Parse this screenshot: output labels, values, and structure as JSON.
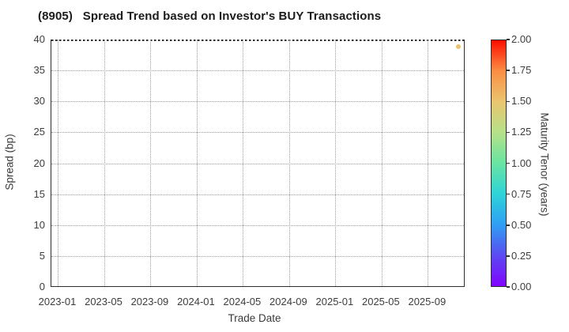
{
  "chart_data": {
    "type": "scatter",
    "title": "(8905)   Spread Trend based on Investor's BUY Transactions",
    "xlabel": "Trade Date",
    "ylabel": "Spread (bp)",
    "x_tick_labels": [
      "2023-01",
      "2023-05",
      "2023-09",
      "2024-01",
      "2024-05",
      "2024-09",
      "2025-01",
      "2025-05",
      "2025-09"
    ],
    "x_tick_months": [
      0,
      4,
      8,
      12,
      16,
      20,
      24,
      28,
      32
    ],
    "xlim_months": [
      -0.58,
      35.26
    ],
    "y_tick_labels": [
      "0",
      "5",
      "10",
      "15",
      "20",
      "25",
      "30",
      "35",
      "40"
    ],
    "ylim": [
      0,
      40
    ],
    "grid": true,
    "grid_style": "dotted",
    "legend": "none",
    "points": [
      {
        "trade_date": "2025-11",
        "month_offset": 34.7,
        "spread_bp": 38.9,
        "maturity_tenor_years": 1.45,
        "color": "#e9c46a"
      }
    ],
    "colorbar": {
      "label": "Maturity Tenor (years)",
      "tick_labels": [
        "0.00",
        "0.25",
        "0.50",
        "0.75",
        "1.00",
        "1.25",
        "1.50",
        "1.75",
        "2.00"
      ],
      "range": [
        0,
        2
      ],
      "colormap": "rainbow",
      "gradient_stops_bottom_to_top": [
        "#8004fe",
        "#5b4af2",
        "#2f9ff4",
        "#2ed3d8",
        "#69e4a2",
        "#b5e189",
        "#eac56f",
        "#fb8e44",
        "#fd0d00"
      ]
    },
    "colors": {
      "text": "#3d3d3d",
      "title_text": "#1c1c1c",
      "spine": "#2e2e2e",
      "grid": "#9b9b9b",
      "background": "#ffffff"
    }
  }
}
